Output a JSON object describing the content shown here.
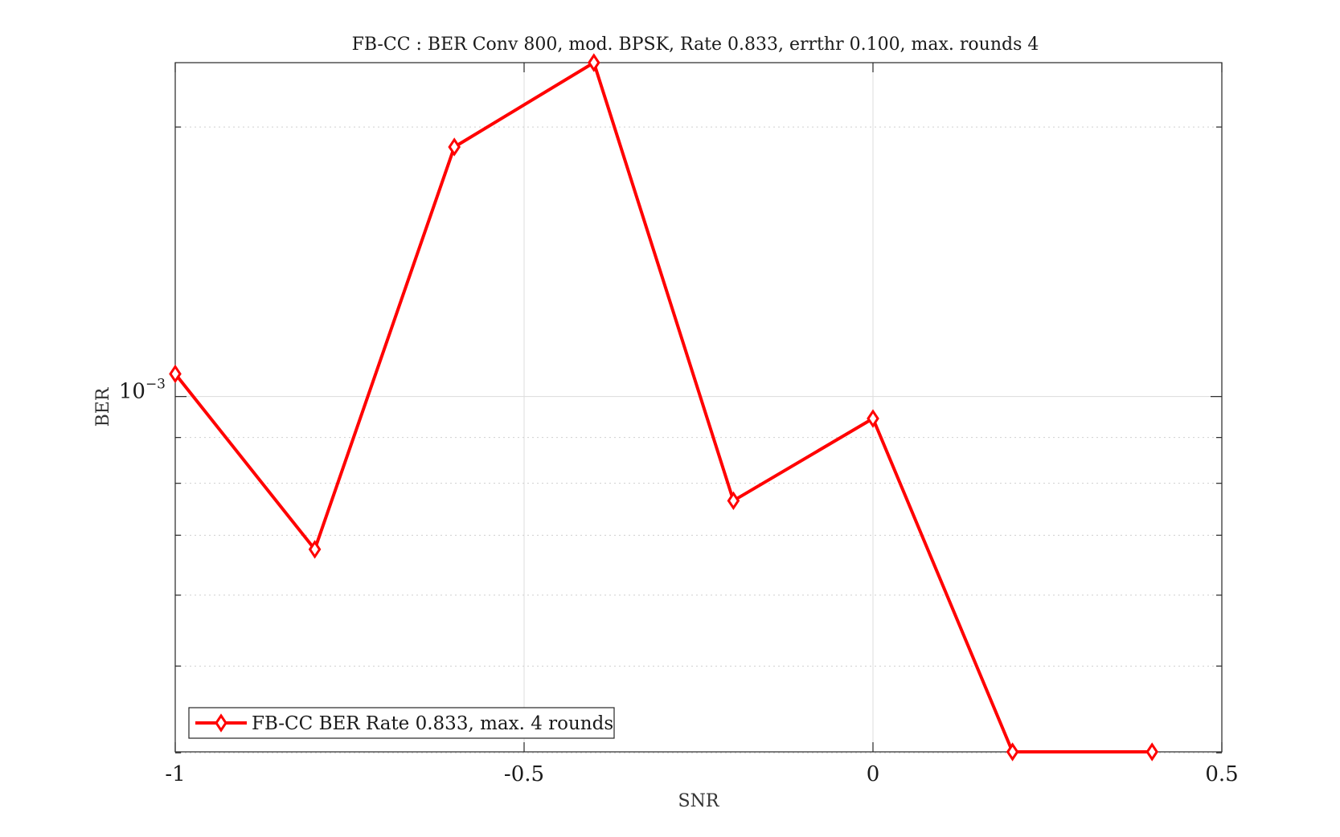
{
  "chart_data": {
    "type": "line",
    "title": "FB-CC : BER Conv 800, mod. BPSK, Rate 0.833, errthr 0.100, max. rounds 4",
    "xlabel": "SNR",
    "ylabel": "BER",
    "xlim": [
      -1,
      0.5
    ],
    "yscale": "log",
    "ylim": [
      0.000401,
      0.00236
    ],
    "xticks": [
      -1,
      -0.5,
      0,
      0.5
    ],
    "xtick_labels": [
      "-1",
      "-0.5",
      "0",
      "0.5"
    ],
    "yticks": [
      0.001
    ],
    "ytick_labels": [
      "10^{-3}"
    ],
    "yminor_ticks": [
      0.0004,
      0.0005,
      0.0006,
      0.0007,
      0.0008,
      0.0009,
      0.002
    ],
    "grid": true,
    "legend_position": "bottom-left",
    "series": [
      {
        "name": "FB-CC BER Rate 0.833, max. 4 rounds",
        "color": "#ff0000",
        "marker": "diamond",
        "x": [
          -1,
          -0.8,
          -0.6,
          -0.4,
          -0.2,
          0,
          0.2,
          0.4
        ],
        "y": [
          0.00106,
          0.000675,
          0.0019,
          0.00236,
          0.000765,
          0.000945,
          0.000401,
          0.000401
        ]
      }
    ]
  }
}
